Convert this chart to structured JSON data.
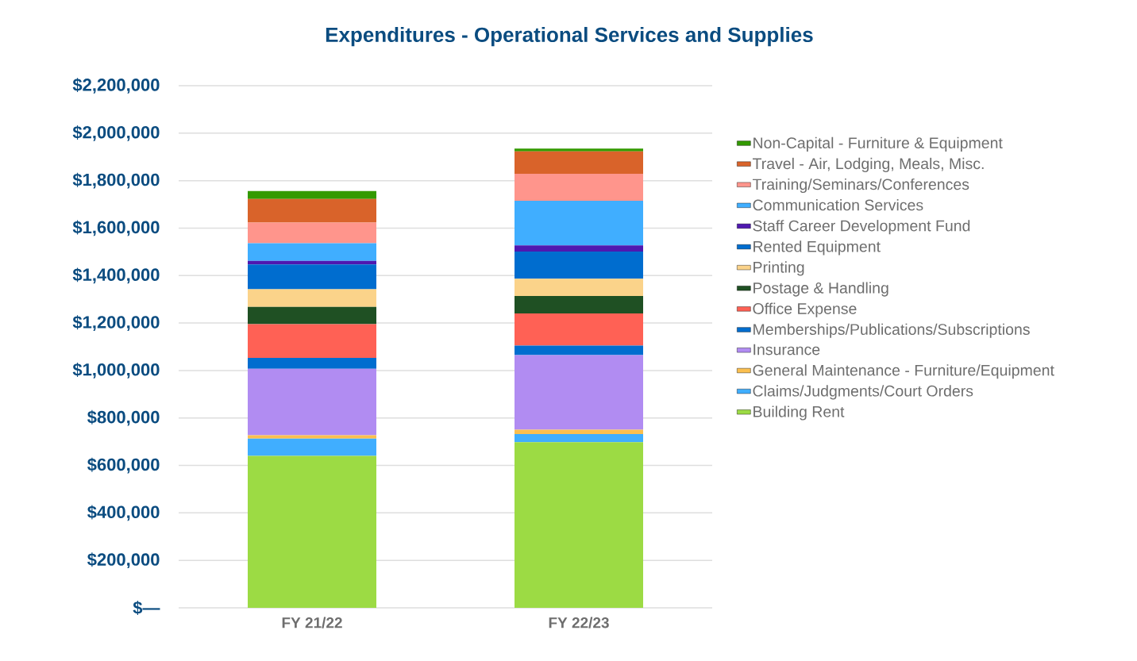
{
  "chart_data": {
    "type": "bar",
    "title": "Expenditures - Operational Services and Supplies",
    "categories": [
      "FY 21/22",
      "FY 22/23"
    ],
    "stacked": true,
    "series": [
      {
        "name": "Building Rent",
        "color": "#9cdb44",
        "values": [
          640000,
          698000
        ]
      },
      {
        "name": "Claims/Judgments/Court Orders",
        "color": "#40aeff",
        "values": [
          73000,
          34000
        ]
      },
      {
        "name": "General Maintenance - Furniture/Equipment",
        "color": "#fbbf4f",
        "values": [
          14000,
          19000
        ]
      },
      {
        "name": "Insurance",
        "color": "#b18cf2",
        "values": [
          280000,
          314000
        ]
      },
      {
        "name": "Memberships/Publications/Subscriptions",
        "color": "#006dcf",
        "values": [
          46000,
          40000
        ]
      },
      {
        "name": "Office Expense",
        "color": "#ff6155",
        "values": [
          142000,
          135000
        ]
      },
      {
        "name": "Postage & Handling",
        "color": "#1f5023",
        "values": [
          73000,
          74000
        ]
      },
      {
        "name": "Printing",
        "color": "#fbd38a",
        "values": [
          74000,
          73000
        ]
      },
      {
        "name": "Rented Equipment",
        "color": "#006dcf",
        "values": [
          105000,
          114000
        ]
      },
      {
        "name": "Staff Career Development Fund",
        "color": "#4f18b0",
        "values": [
          15000,
          26000
        ]
      },
      {
        "name": "Communication Services",
        "color": "#40aeff",
        "values": [
          74000,
          188000
        ]
      },
      {
        "name": "Training/Seminars/Conferences",
        "color": "#ff958c",
        "values": [
          87000,
          114000
        ]
      },
      {
        "name": "Travel - Air, Lodging, Meals, Misc.",
        "color": "#d9632a",
        "values": [
          100000,
          94000
        ]
      },
      {
        "name": "Non-Capital - Furniture & Equipment",
        "color": "#339a00",
        "values": [
          33000,
          12000
        ]
      }
    ],
    "ylim": [
      0,
      2200000
    ],
    "yticks": [
      {
        "value": 0,
        "label": "$—"
      },
      {
        "value": 200000,
        "label": "$200,000"
      },
      {
        "value": 400000,
        "label": "$400,000"
      },
      {
        "value": 600000,
        "label": "$600,000"
      },
      {
        "value": 800000,
        "label": "$800,000"
      },
      {
        "value": 1000000,
        "label": "$1,000,000"
      },
      {
        "value": 1200000,
        "label": "$1,200,000"
      },
      {
        "value": 1400000,
        "label": "$1,400,000"
      },
      {
        "value": 1600000,
        "label": "$1,600,000"
      },
      {
        "value": 1800000,
        "label": "$1,800,000"
      },
      {
        "value": 2000000,
        "label": "$2,000,000"
      },
      {
        "value": 2200000,
        "label": "$2,200,000"
      }
    ],
    "grid": "y",
    "legend": "right"
  }
}
